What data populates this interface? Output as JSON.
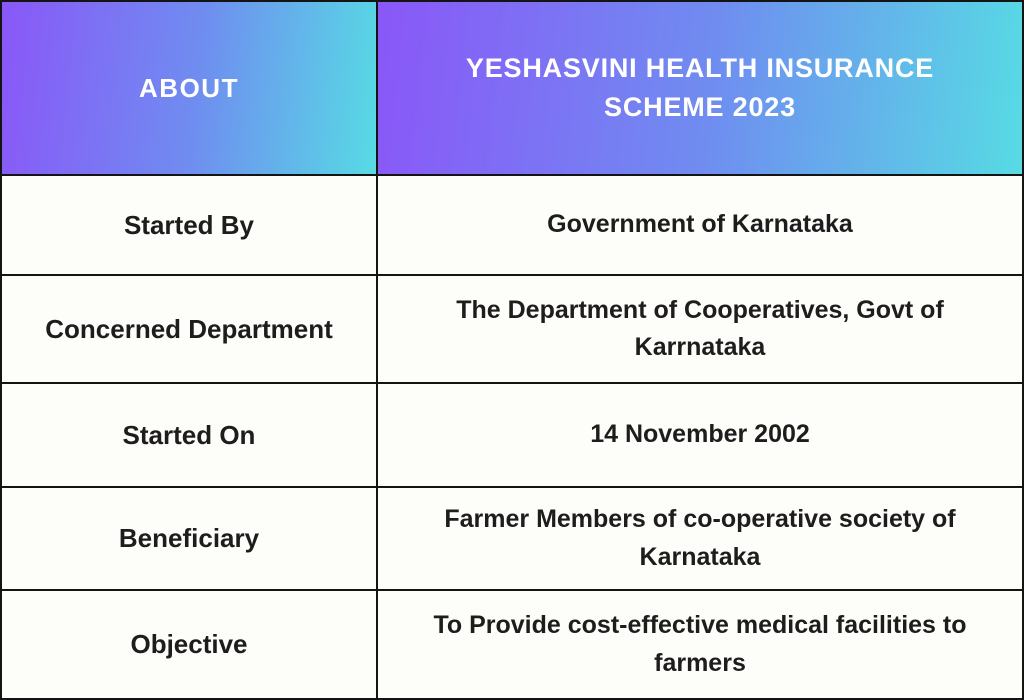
{
  "table": {
    "header": {
      "about_label": "ABOUT",
      "scheme_title": "YESHASVINI HEALTH INSURANCE SCHEME 2023"
    },
    "rows": [
      {
        "label": "Started By",
        "value": "Government of Karnataka"
      },
      {
        "label": "Concerned Department",
        "value": "The Department of Cooperatives, Govt of Karrnataka"
      },
      {
        "label": "Started On",
        "value": "14 November 2002"
      },
      {
        "label": "Beneficiary",
        "value": "Farmer Members of co-operative society of Karnataka"
      },
      {
        "label": "Objective",
        "value": "To Provide cost-effective medical facilities to farmers"
      }
    ],
    "colors": {
      "gradient_start": "#8a57f8",
      "gradient_end": "#57dbe4",
      "header_text": "#ffffff",
      "body_text": "#1e1c1c",
      "grid_line": "#141414",
      "cell_background": "#fdfdfa"
    }
  }
}
